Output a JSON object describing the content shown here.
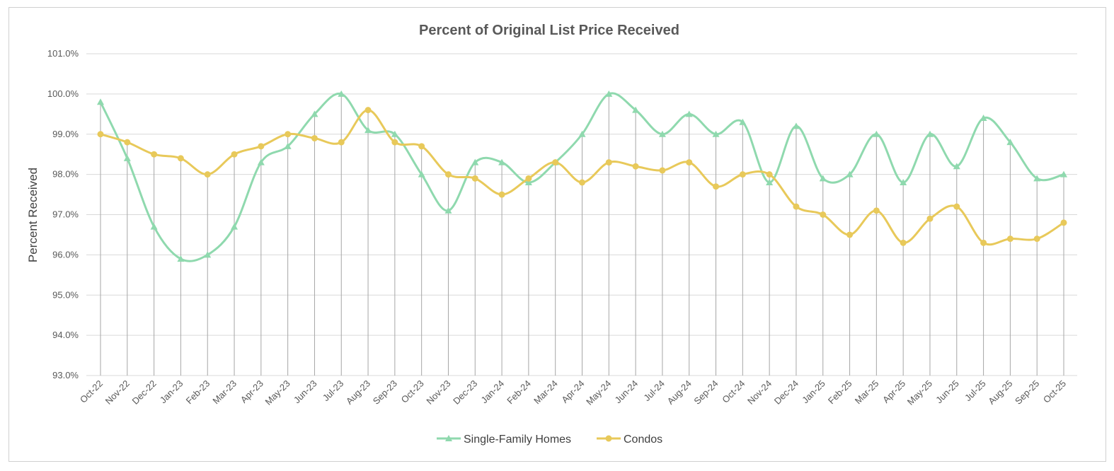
{
  "chart_data": {
    "type": "line",
    "title": "Percent of Original List Price Received",
    "xlabel": "",
    "ylabel": "Percent Received",
    "ylim": [
      93.0,
      101.0
    ],
    "ytick_step": 1.0,
    "yticks": [
      "93.0%",
      "94.0%",
      "95.0%",
      "96.0%",
      "97.0%",
      "98.0%",
      "99.0%",
      "100.0%",
      "101.0%"
    ],
    "grid": true,
    "legend_position": "bottom",
    "categories": [
      "Oct-22",
      "Nov-22",
      "Dec-22",
      "Jan-23",
      "Feb-23",
      "Mar-23",
      "Apr-23",
      "May-23",
      "Jun-23",
      "Jul-23",
      "Aug-23",
      "Sep-23",
      "Oct-23",
      "Nov-23",
      "Dec-23",
      "Jan-24",
      "Feb-24",
      "Mar-24",
      "Apr-24",
      "May-24",
      "Jun-24",
      "Jul-24",
      "Aug-24",
      "Sep-24",
      "Oct-24",
      "Nov-24",
      "Dec-24",
      "Jan-25",
      "Feb-25",
      "Mar-25",
      "Apr-25",
      "May-25",
      "Jun-25",
      "Jul-25",
      "Aug-25",
      "Sep-25",
      "Oct-25"
    ],
    "series": [
      {
        "name": "Single-Family Homes",
        "color": "#8fd9ae",
        "marker": "triangle",
        "values": [
          99.8,
          98.4,
          96.7,
          95.9,
          96.0,
          96.7,
          98.3,
          98.7,
          99.5,
          100.0,
          99.1,
          99.0,
          98.0,
          97.1,
          98.3,
          98.3,
          97.8,
          98.3,
          99.0,
          100.0,
          99.6,
          99.0,
          99.5,
          99.0,
          99.3,
          97.8,
          99.2,
          97.9,
          98.0,
          99.0,
          97.8,
          99.0,
          98.2,
          99.4,
          98.8,
          97.9,
          98.0
        ]
      },
      {
        "name": "Condos",
        "color": "#e8c95a",
        "marker": "circle",
        "values": [
          99.0,
          98.8,
          98.5,
          98.4,
          98.0,
          98.5,
          98.7,
          99.0,
          98.9,
          98.8,
          99.6,
          98.8,
          98.7,
          98.0,
          97.9,
          97.5,
          97.9,
          98.3,
          97.8,
          98.3,
          98.2,
          98.1,
          98.3,
          97.7,
          98.0,
          98.0,
          97.2,
          97.0,
          96.5,
          97.1,
          96.3,
          96.9,
          97.2,
          96.3,
          96.4,
          96.4,
          96.8
        ]
      }
    ]
  }
}
